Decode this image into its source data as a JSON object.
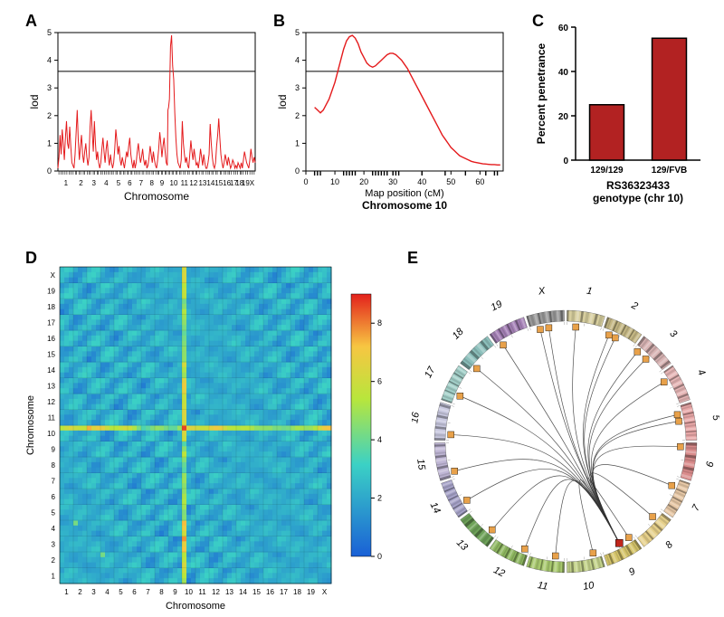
{
  "panelA": {
    "label": "A",
    "type": "line",
    "ylabel": "lod",
    "xlabel": "Chromosome",
    "ylim": [
      0,
      5
    ],
    "yticks": [
      0,
      1,
      2,
      3,
      4,
      5
    ],
    "threshold": 3.6,
    "line_color": "#e41a1c",
    "axis_color": "#000000",
    "grid_color": "#000000",
    "background_color": "#ffffff",
    "label_fontsize": 12,
    "tick_fontsize": 9,
    "title_fontsize": 18,
    "chrom_labels": [
      "1",
      "2",
      "3",
      "4",
      "5",
      "6",
      "7",
      "8",
      "9",
      "10",
      "11",
      "12",
      "13",
      "14",
      "15",
      "16",
      "17",
      "18",
      "19",
      "X"
    ],
    "chrom_breaks": [
      0,
      7.5,
      14,
      19.5,
      25.5,
      31,
      36,
      41.5,
      46,
      51,
      57,
      61,
      65.5,
      69.5,
      73,
      77,
      80.5,
      83.5,
      86,
      89,
      92
    ],
    "values": [
      [
        0,
        0.1
      ],
      [
        0.5,
        0.5
      ],
      [
        1,
        1.3
      ],
      [
        1.5,
        0.6
      ],
      [
        2,
        1.5
      ],
      [
        2.5,
        1.0
      ],
      [
        3,
        0.4
      ],
      [
        3.5,
        1.2
      ],
      [
        4,
        1.8
      ],
      [
        4.5,
        1.0
      ],
      [
        5,
        0.8
      ],
      [
        5.5,
        1.6
      ],
      [
        6,
        0.9
      ],
      [
        6.5,
        0.3
      ],
      [
        7,
        0.2
      ],
      [
        7.5,
        0.1
      ],
      [
        8,
        0.6
      ],
      [
        8.5,
        1.4
      ],
      [
        9,
        2.2
      ],
      [
        9.5,
        1.1
      ],
      [
        10,
        0.4
      ],
      [
        10.5,
        0.9
      ],
      [
        11,
        1.3
      ],
      [
        11.5,
        0.6
      ],
      [
        12,
        0.3
      ],
      [
        12.5,
        0.7
      ],
      [
        13,
        1.0
      ],
      [
        13.5,
        0.5
      ],
      [
        14,
        0.2
      ],
      [
        14.5,
        0.5
      ],
      [
        15,
        1.6
      ],
      [
        15.5,
        2.2
      ],
      [
        16,
        1.4
      ],
      [
        16.5,
        0.7
      ],
      [
        17,
        1.8
      ],
      [
        17.5,
        1.0
      ],
      [
        18,
        0.4
      ],
      [
        18.5,
        0.7
      ],
      [
        19,
        0.3
      ],
      [
        19.5,
        0.1
      ],
      [
        20,
        0.3
      ],
      [
        20.5,
        0.8
      ],
      [
        21,
        1.2
      ],
      [
        21.5,
        0.7
      ],
      [
        22,
        0.3
      ],
      [
        22.5,
        0.8
      ],
      [
        23,
        1.1
      ],
      [
        23.5,
        0.5
      ],
      [
        24,
        0.2
      ],
      [
        24.5,
        0.6
      ],
      [
        25,
        0.3
      ],
      [
        25.5,
        0.1
      ],
      [
        26,
        0.3
      ],
      [
        26.5,
        0.8
      ],
      [
        27,
        1.5
      ],
      [
        27.5,
        1.1
      ],
      [
        28,
        0.6
      ],
      [
        28.5,
        0.9
      ],
      [
        29,
        0.4
      ],
      [
        29.5,
        0.2
      ],
      [
        30,
        0.5
      ],
      [
        30.5,
        0.3
      ],
      [
        31,
        0.1
      ],
      [
        31.5,
        0.4
      ],
      [
        32,
        0.7
      ],
      [
        32.5,
        0.5
      ],
      [
        33,
        0.9
      ],
      [
        33.5,
        1.2
      ],
      [
        34,
        0.6
      ],
      [
        34.5,
        0.3
      ],
      [
        35,
        0.1
      ],
      [
        35.5,
        0.4
      ],
      [
        36,
        0.1
      ],
      [
        36.5,
        0.3
      ],
      [
        37,
        0.7
      ],
      [
        37.5,
        1.0
      ],
      [
        38,
        0.6
      ],
      [
        38.5,
        0.3
      ],
      [
        39,
        0.5
      ],
      [
        39.5,
        0.8
      ],
      [
        40,
        0.4
      ],
      [
        40.5,
        0.2
      ],
      [
        41,
        0.4
      ],
      [
        41.5,
        0.1
      ],
      [
        42,
        0.2
      ],
      [
        42.5,
        0.5
      ],
      [
        43,
        0.9
      ],
      [
        43.5,
        0.6
      ],
      [
        44,
        0.3
      ],
      [
        44.5,
        0.7
      ],
      [
        45,
        0.4
      ],
      [
        45.5,
        0.2
      ],
      [
        46,
        0.1
      ],
      [
        46.5,
        0.4
      ],
      [
        47,
        0.8
      ],
      [
        47.5,
        1.4
      ],
      [
        48,
        1.0
      ],
      [
        48.5,
        0.5
      ],
      [
        49,
        0.9
      ],
      [
        49.5,
        1.2
      ],
      [
        50,
        0.7
      ],
      [
        50.5,
        0.3
      ],
      [
        51,
        0.2
      ],
      [
        51.3,
        2.2
      ],
      [
        51.6,
        2.3
      ],
      [
        52,
        2.6
      ],
      [
        52.5,
        4.5
      ],
      [
        53,
        4.9
      ],
      [
        53.5,
        3.8
      ],
      [
        54,
        3.3
      ],
      [
        54.5,
        2.1
      ],
      [
        55,
        1.2
      ],
      [
        55.5,
        0.6
      ],
      [
        56,
        0.3
      ],
      [
        56.5,
        0.2
      ],
      [
        57,
        0.1
      ],
      [
        57.5,
        0.4
      ],
      [
        58,
        1.8
      ],
      [
        58.5,
        1.0
      ],
      [
        59,
        0.6
      ],
      [
        59.5,
        0.3
      ],
      [
        60,
        0.5
      ],
      [
        60.5,
        0.2
      ],
      [
        61,
        0.1
      ],
      [
        61.5,
        0.6
      ],
      [
        62,
        1.1
      ],
      [
        62.5,
        0.7
      ],
      [
        63,
        0.4
      ],
      [
        63.5,
        0.8
      ],
      [
        64,
        0.5
      ],
      [
        64.5,
        0.2
      ],
      [
        65,
        0.3
      ],
      [
        65.5,
        0.1
      ],
      [
        66,
        0.4
      ],
      [
        66.5,
        0.8
      ],
      [
        67,
        0.5
      ],
      [
        67.5,
        0.2
      ],
      [
        68,
        0.6
      ],
      [
        68.5,
        0.3
      ],
      [
        69,
        0.1
      ],
      [
        69.5,
        0.1
      ],
      [
        70,
        0.3
      ],
      [
        70.5,
        0.6
      ],
      [
        71,
        1.7
      ],
      [
        71.5,
        1.0
      ],
      [
        72,
        0.5
      ],
      [
        72.5,
        0.2
      ],
      [
        73,
        0.1
      ],
      [
        73.5,
        0.3
      ],
      [
        74,
        0.9
      ],
      [
        74.5,
        1.3
      ],
      [
        75,
        1.9
      ],
      [
        75.5,
        1.2
      ],
      [
        76,
        0.6
      ],
      [
        76.5,
        0.3
      ],
      [
        77,
        0.1
      ],
      [
        77.5,
        0.3
      ],
      [
        78,
        0.6
      ],
      [
        78.5,
        0.4
      ],
      [
        79,
        0.2
      ],
      [
        79.5,
        0.5
      ],
      [
        80,
        0.3
      ],
      [
        80.5,
        0.1
      ],
      [
        81,
        0.2
      ],
      [
        81.5,
        0.4
      ],
      [
        82,
        0.3
      ],
      [
        82.5,
        0.1
      ],
      [
        83,
        0.2
      ],
      [
        83.5,
        0.1
      ],
      [
        84,
        0.3
      ],
      [
        84.5,
        0.2
      ],
      [
        85,
        0.1
      ],
      [
        85.5,
        0.3
      ],
      [
        86,
        0.1
      ],
      [
        86.5,
        0.4
      ],
      [
        87,
        0.7
      ],
      [
        87.5,
        0.5
      ],
      [
        88,
        0.3
      ],
      [
        88.5,
        0.2
      ],
      [
        89,
        0.1
      ],
      [
        89.5,
        0.4
      ],
      [
        90,
        0.8
      ],
      [
        90.5,
        0.5
      ],
      [
        91,
        0.3
      ],
      [
        91.5,
        0.5
      ],
      [
        92,
        0.3
      ]
    ]
  },
  "panelB": {
    "label": "B",
    "type": "line",
    "ylabel": "lod",
    "xlabel": "Map position (cM)",
    "subtitle": "Chromosome 10",
    "ylim": [
      0,
      5
    ],
    "yticks": [
      0,
      1,
      2,
      3,
      4,
      5
    ],
    "xlim": [
      0,
      68
    ],
    "xticks": [
      0,
      10,
      20,
      30,
      40,
      50,
      60
    ],
    "threshold": 3.6,
    "line_color": "#e41a1c",
    "axis_color": "#000000",
    "background_color": "#ffffff",
    "label_fontsize": 12,
    "tick_fontsize": 9,
    "title_fontsize": 18,
    "rug_positions": [
      3,
      4,
      5,
      13,
      14,
      15,
      16,
      17,
      23,
      24,
      25,
      26,
      27,
      28,
      30,
      31,
      32,
      40,
      48,
      55,
      62,
      65,
      66
    ],
    "values": [
      [
        3,
        2.3
      ],
      [
        4,
        2.2
      ],
      [
        5,
        2.1
      ],
      [
        6,
        2.2
      ],
      [
        7,
        2.4
      ],
      [
        8,
        2.6
      ],
      [
        9,
        2.9
      ],
      [
        10,
        3.2
      ],
      [
        11,
        3.6
      ],
      [
        12,
        4.0
      ],
      [
        13,
        4.4
      ],
      [
        14,
        4.7
      ],
      [
        15,
        4.85
      ],
      [
        16,
        4.9
      ],
      [
        17,
        4.8
      ],
      [
        18,
        4.6
      ],
      [
        19,
        4.3
      ],
      [
        20,
        4.1
      ],
      [
        21,
        3.9
      ],
      [
        22,
        3.8
      ],
      [
        23,
        3.75
      ],
      [
        24,
        3.8
      ],
      [
        25,
        3.9
      ],
      [
        26,
        4.0
      ],
      [
        27,
        4.1
      ],
      [
        28,
        4.2
      ],
      [
        29,
        4.25
      ],
      [
        30,
        4.25
      ],
      [
        31,
        4.2
      ],
      [
        32,
        4.1
      ],
      [
        33,
        4.0
      ],
      [
        34,
        3.85
      ],
      [
        35,
        3.7
      ],
      [
        36,
        3.5
      ],
      [
        37,
        3.3
      ],
      [
        38,
        3.1
      ],
      [
        39,
        2.9
      ],
      [
        40,
        2.7
      ],
      [
        41,
        2.5
      ],
      [
        42,
        2.3
      ],
      [
        43,
        2.1
      ],
      [
        44,
        1.9
      ],
      [
        45,
        1.7
      ],
      [
        46,
        1.5
      ],
      [
        47,
        1.3
      ],
      [
        48,
        1.15
      ],
      [
        49,
        1.0
      ],
      [
        50,
        0.85
      ],
      [
        51,
        0.75
      ],
      [
        52,
        0.65
      ],
      [
        53,
        0.55
      ],
      [
        54,
        0.5
      ],
      [
        55,
        0.45
      ],
      [
        56,
        0.4
      ],
      [
        57,
        0.35
      ],
      [
        58,
        0.32
      ],
      [
        59,
        0.3
      ],
      [
        60,
        0.28
      ],
      [
        61,
        0.26
      ],
      [
        62,
        0.25
      ],
      [
        63,
        0.24
      ],
      [
        64,
        0.23
      ],
      [
        65,
        0.23
      ],
      [
        66,
        0.22
      ],
      [
        67,
        0.22
      ]
    ]
  },
  "panelC": {
    "label": "C",
    "type": "bar",
    "ylabel": "Percent penetrance",
    "xlabel": "RS36323433\ngenotype (chr 10)",
    "ylim": [
      0,
      60
    ],
    "yticks": [
      0,
      20,
      40,
      60
    ],
    "categories": [
      "129/129",
      "129/FVB"
    ],
    "values": [
      25,
      55
    ],
    "bar_colors": [
      "#b22222",
      "#b22222"
    ],
    "bar_stroke": "#000000",
    "axis_color": "#000000",
    "background_color": "#ffffff",
    "label_fontsize": 12,
    "tick_fontsize": 10,
    "title_fontsize": 18,
    "bar_width": 0.55
  },
  "panelD": {
    "label": "D",
    "type": "heatmap",
    "xlabel": "Chromosome",
    "ylabel": "Chromosome",
    "chrom_labels": [
      "1",
      "2",
      "3",
      "4",
      "5",
      "6",
      "7",
      "8",
      "9",
      "10",
      "11",
      "12",
      "13",
      "14",
      "15",
      "16",
      "17",
      "18",
      "19",
      "X"
    ],
    "colorscale_ticks": [
      0,
      2,
      4,
      6,
      8
    ],
    "colors": {
      "low": "#1a60d6",
      "mid": "#3bd1c5",
      "high1": "#b8e63c",
      "high2": "#f7c642",
      "max": "#e3211c"
    },
    "background_color": "#ffffff",
    "label_fontsize": 11,
    "tick_fontsize": 8,
    "title_fontsize": 18,
    "hot_row_index": 9
  },
  "panelE": {
    "label": "E",
    "type": "circos",
    "chrom_labels": [
      "1",
      "2",
      "3",
      "4",
      "5",
      "6",
      "7",
      "8",
      "9",
      "10",
      "11",
      "12",
      "13",
      "14",
      "15",
      "16",
      "17",
      "18",
      "19",
      "X"
    ],
    "chrom_colors": [
      "#d7ce9e",
      "#c4b783",
      "#d9b4b4",
      "#e6b6b6",
      "#e8a7a7",
      "#d98b8b",
      "#e8c9a7",
      "#e6d08a",
      "#d6c56b",
      "#c5d48c",
      "#a8c96e",
      "#8fb861",
      "#6fa35a",
      "#a7a3c9",
      "#bfb6d5",
      "#c9c9e0",
      "#a3d0c9",
      "#8cc0bc",
      "#a783b8",
      "#999999"
    ],
    "node_color": "#e8a14a",
    "hub_color": "#c0261c",
    "edge_color": "#333333",
    "background_color": "#ffffff",
    "label_fontsize": 11,
    "title_fontsize": 18,
    "hub_chrom": "9",
    "node_chroms": [
      "1",
      "2",
      "2",
      "3",
      "3",
      "4",
      "5",
      "5",
      "6",
      "7",
      "8",
      "9",
      "10",
      "11",
      "12",
      "13",
      "14",
      "15",
      "16",
      "17",
      "18",
      "19",
      "X",
      "X"
    ]
  }
}
